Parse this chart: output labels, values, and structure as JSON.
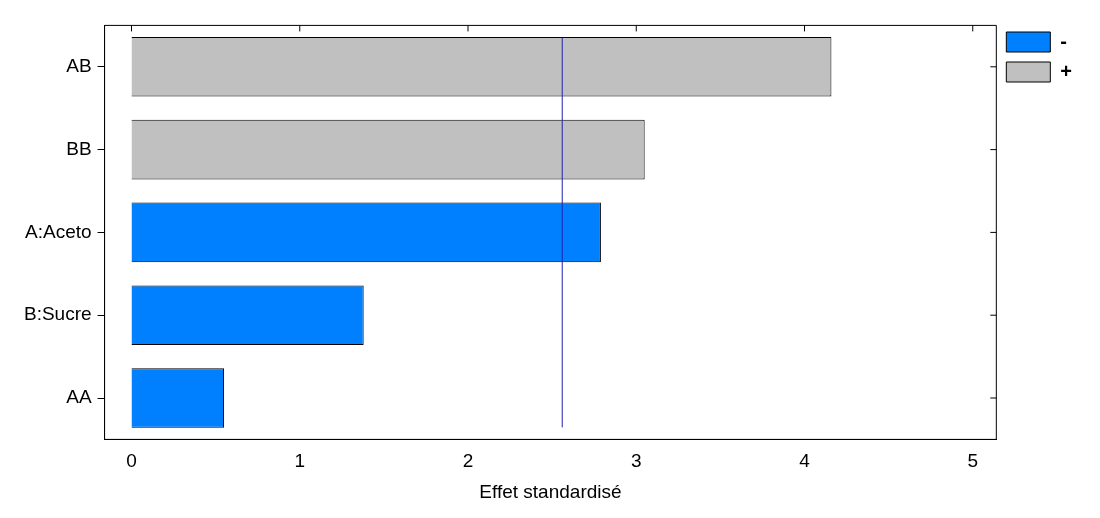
{
  "chart_data": {
    "type": "bar",
    "orientation": "horizontal",
    "xlabel": "Effet standardisé",
    "categories": [
      "AB",
      "BB",
      "A:Aceto",
      "B:Sucre",
      "AA"
    ],
    "series": [
      {
        "name": "-",
        "color": "#0080ff",
        "values": [
          null,
          null,
          2.79,
          1.38,
          0.55
        ]
      },
      {
        "name": "+",
        "color": "#c0c0c0",
        "values": [
          4.16,
          3.05,
          null,
          null,
          null
        ]
      }
    ],
    "xlim": [
      -0.16,
      5.14
    ],
    "xticks": [
      0,
      1,
      2,
      3,
      4,
      5
    ],
    "grid": false,
    "legend": "top right",
    "ref_lines": [
      {
        "axis": "x",
        "value": 2.56,
        "color": "#2020b0"
      }
    ]
  }
}
